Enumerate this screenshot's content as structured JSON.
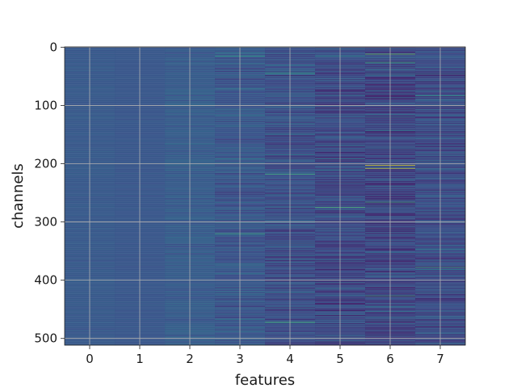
{
  "chart_data": {
    "type": "heatmap",
    "title": "",
    "xlabel": "features",
    "ylabel": "channels",
    "x_ticks": [
      0,
      1,
      2,
      3,
      4,
      5,
      6,
      7
    ],
    "y_ticks": [
      0,
      100,
      200,
      300,
      400,
      500
    ],
    "n_features": 8,
    "n_channels": 512,
    "xlim": [
      -0.5,
      7.5
    ],
    "ylim": [
      511.5,
      -0.5
    ],
    "grid": true,
    "colormap": "viridis",
    "colormap_stops": [
      "#440154",
      "#3b528b",
      "#21918c",
      "#5ec962",
      "#fde725"
    ],
    "feature_profiles": [
      {
        "feature": 0,
        "mean": 0.28,
        "spread": 0.03
      },
      {
        "feature": 1,
        "mean": 0.27,
        "spread": 0.02
      },
      {
        "feature": 2,
        "mean": 0.29,
        "spread": 0.07
      },
      {
        "feature": 3,
        "mean": 0.27,
        "spread": 0.12
      },
      {
        "feature": 4,
        "mean": 0.24,
        "spread": 0.16
      },
      {
        "feature": 5,
        "mean": 0.22,
        "spread": 0.18
      },
      {
        "feature": 6,
        "mean": 0.21,
        "spread": 0.2
      },
      {
        "feature": 7,
        "mean": 0.23,
        "spread": 0.16
      }
    ],
    "bright_cells": [
      {
        "feature": 3,
        "channel": 15,
        "value": 0.55
      },
      {
        "feature": 3,
        "channel": 320,
        "value": 0.6
      },
      {
        "feature": 4,
        "channel": 45,
        "value": 0.55
      },
      {
        "feature": 4,
        "channel": 218,
        "value": 0.62
      },
      {
        "feature": 4,
        "channel": 472,
        "value": 0.62
      },
      {
        "feature": 5,
        "channel": 275,
        "value": 0.65
      },
      {
        "feature": 5,
        "channel": 15,
        "value": 0.5
      },
      {
        "feature": 6,
        "channel": 12,
        "value": 0.75
      },
      {
        "feature": 6,
        "channel": 26,
        "value": 0.6
      },
      {
        "feature": 6,
        "channel": 203,
        "value": 0.95
      },
      {
        "feature": 6,
        "channel": 208,
        "value": 0.9
      },
      {
        "feature": 6,
        "channel": 266,
        "value": 0.6
      },
      {
        "feature": 6,
        "channel": 427,
        "value": 0.6
      },
      {
        "feature": 7,
        "channel": 378,
        "value": 0.6
      },
      {
        "feature": 7,
        "channel": 83,
        "value": 0.55
      }
    ]
  }
}
